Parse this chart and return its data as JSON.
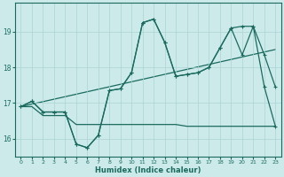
{
  "bg_color": "#cceaea",
  "line_color": "#1a6b5e",
  "grid_color": "#aad4d4",
  "xlabel": "Humidex (Indice chaleur)",
  "xlim": [
    -0.5,
    23.5
  ],
  "ylim": [
    15.5,
    19.8
  ],
  "yticks": [
    16,
    17,
    18,
    19
  ],
  "xticks": [
    0,
    1,
    2,
    3,
    4,
    5,
    6,
    7,
    8,
    9,
    10,
    11,
    12,
    13,
    14,
    15,
    16,
    17,
    18,
    19,
    20,
    21,
    22,
    23
  ],
  "marker": "+",
  "markersize": 3.5,
  "linewidth": 0.9,
  "curve1_x": [
    0,
    1,
    2,
    3,
    4,
    5,
    6,
    7,
    8,
    9,
    10,
    11,
    12,
    13,
    14,
    15,
    16,
    17,
    18,
    19,
    20,
    21,
    22,
    23
  ],
  "curve1_y": [
    16.9,
    16.9,
    16.65,
    16.65,
    16.65,
    16.4,
    16.4,
    16.4,
    16.4,
    16.4,
    16.4,
    16.4,
    16.4,
    16.4,
    16.4,
    16.35,
    16.35,
    16.35,
    16.35,
    16.35,
    16.35,
    16.35,
    16.35,
    16.35
  ],
  "curve2_x": [
    0,
    1,
    2,
    3,
    4,
    5,
    6,
    7,
    8,
    9,
    10,
    11,
    12,
    13,
    14,
    15,
    16,
    17,
    18,
    19,
    20,
    21,
    22,
    23
  ],
  "curve2_y": [
    16.9,
    17.05,
    16.75,
    16.75,
    16.75,
    15.85,
    15.75,
    16.1,
    17.35,
    17.4,
    17.85,
    19.25,
    19.35,
    18.7,
    17.75,
    17.8,
    17.85,
    18.0,
    18.55,
    19.1,
    19.15,
    19.15,
    18.35,
    17.45
  ],
  "curve3_x": [
    0,
    23
  ],
  "curve3_y": [
    16.9,
    18.5
  ],
  "curve4_x": [
    0,
    1,
    2,
    3,
    4,
    5,
    6,
    7,
    8,
    9,
    10,
    11,
    12,
    13,
    14,
    15,
    16,
    17,
    18,
    19,
    20,
    21,
    22,
    23
  ],
  "curve4_y": [
    16.9,
    17.05,
    16.75,
    16.75,
    16.75,
    15.85,
    15.75,
    16.1,
    17.35,
    17.4,
    17.85,
    19.25,
    19.35,
    18.7,
    17.75,
    17.8,
    17.85,
    18.0,
    18.55,
    19.1,
    18.35,
    19.15,
    17.45,
    16.35
  ]
}
